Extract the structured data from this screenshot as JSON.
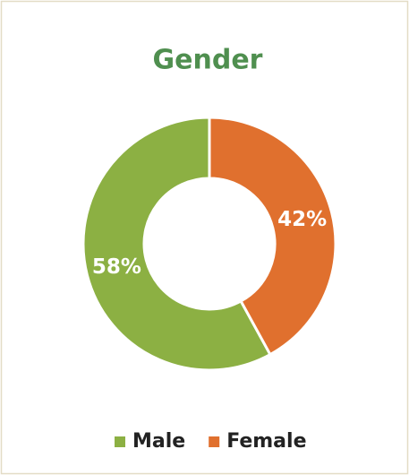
{
  "chart_data": {
    "type": "donut",
    "title": "Gender",
    "categories": [
      "Male",
      "Female"
    ],
    "values": [
      58,
      42
    ],
    "value_labels": [
      "58%",
      "42%"
    ],
    "colors": [
      "#8cb043",
      "#e0702e"
    ],
    "legend": "bottom"
  }
}
